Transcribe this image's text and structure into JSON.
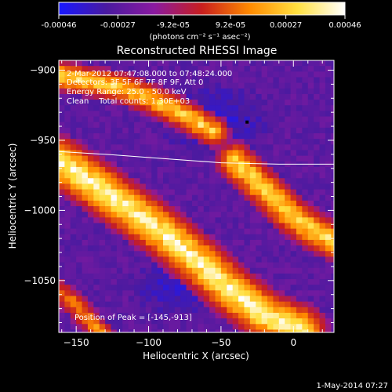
{
  "colorbar": {
    "ticks": [
      "-0.00046",
      "-0.00027",
      "-9.2e-05",
      "9.2e-05",
      "0.00027",
      "0.00046"
    ],
    "tick_values": [
      -0.00046,
      -0.00027,
      -9.2e-05,
      9.2e-05,
      0.00027,
      0.00046
    ],
    "range": [
      -0.00046,
      0.00046
    ],
    "unit_label": "(photons cm⁻² s⁻¹ asec⁻²)",
    "colors": [
      "#1818ff",
      "#4a1aa0",
      "#8a1aa0",
      "#c81e1e",
      "#ff8a00",
      "#ffe040",
      "#ffffff"
    ]
  },
  "chart_data": {
    "type": "heatmap",
    "title": "Reconstructed RHESSI Image",
    "xlabel": "Heliocentric X (arcsec)",
    "ylabel": "Heliocentric Y (arcsec)",
    "xlim": [
      -162,
      28
    ],
    "ylim": [
      -1087,
      -893
    ],
    "xticks": [
      -150,
      -100,
      -50,
      0
    ],
    "xtick_labels": [
      "−150",
      "−100",
      "−50",
      "0"
    ],
    "yticks": [
      -900,
      -950,
      -1000,
      -1050
    ],
    "ytick_labels": [
      "−900",
      "−950",
      "−1000",
      "−1050"
    ],
    "annotations": [
      "2-Mar-2012 07:47:08.000 to 07:48:24.000",
      "Detectors: 3F 5F 6F 7F 8F 9F, Att 0",
      "Energy Range: 25.0 - 50.0 keV",
      "Clean    Total counts: 1.30E+03"
    ],
    "peak_label": "Position of Peak = [-145,-913]",
    "peak": [
      -145,
      -913
    ],
    "marker": [
      -32,
      -937
    ],
    "limb": [
      [
        -162,
        -958
      ],
      [
        -130,
        -960
      ],
      [
        -90,
        -963
      ],
      [
        -50,
        -966
      ],
      [
        -10,
        -967
      ],
      [
        28,
        -967
      ]
    ],
    "bands": [
      {
        "name": "top-left",
        "intensity": 0.8,
        "pts": [
          [
            -162,
            -904
          ],
          [
            -120,
            -912
          ],
          [
            -95,
            -922
          ],
          [
            -72,
            -934
          ],
          [
            -55,
            -944
          ]
        ],
        "width": 12
      },
      {
        "name": "middle",
        "intensity": 1.0,
        "pts": [
          [
            -162,
            -965
          ],
          [
            -140,
            -980
          ],
          [
            -112,
            -1000
          ],
          [
            -85,
            -1020
          ],
          [
            -62,
            -1040
          ],
          [
            -42,
            -1058
          ],
          [
            -20,
            -1075
          ],
          [
            5,
            -1085
          ]
        ],
        "width": 20
      },
      {
        "name": "right",
        "intensity": 0.85,
        "pts": [
          [
            -40,
            -965
          ],
          [
            -30,
            -975
          ],
          [
            -20,
            -985
          ],
          [
            -10,
            -995
          ],
          [
            0,
            -1005
          ],
          [
            15,
            -1015
          ],
          [
            28,
            -1022
          ]
        ],
        "width": 15
      },
      {
        "name": "bottom-left",
        "intensity": 0.55,
        "pts": [
          [
            -162,
            -1058
          ],
          [
            -150,
            -1068
          ],
          [
            -140,
            -1080
          ],
          [
            -132,
            -1088
          ]
        ],
        "width": 9
      }
    ]
  },
  "footer": {
    "date": "1-May-2014 07:27"
  }
}
